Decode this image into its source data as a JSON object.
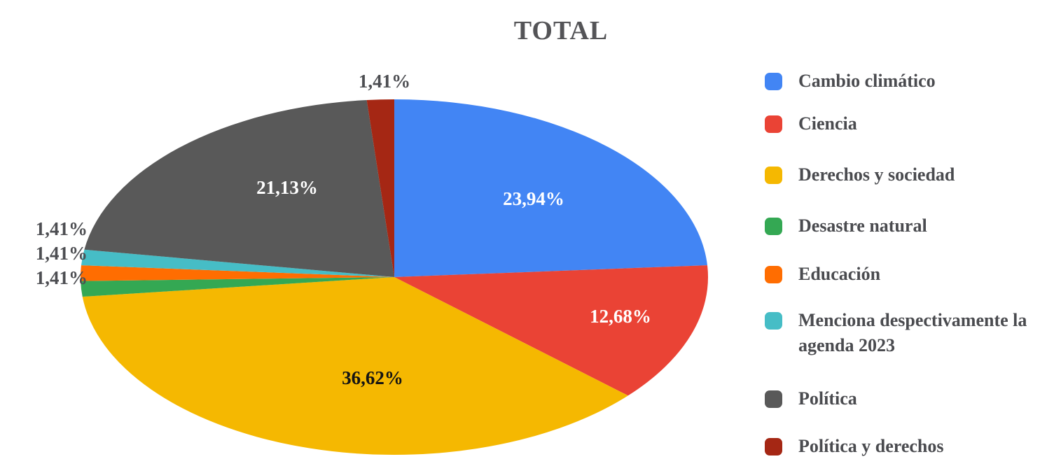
{
  "chart_data": {
    "type": "pie",
    "title": "TOTAL",
    "legend_position": "right",
    "start_angle_deg": 0,
    "direction": "clockwise",
    "number_format": "percent-comma-decimal",
    "slices": [
      {
        "label": "Cambio climático",
        "value": 23.94,
        "display": "23,94%",
        "color": "#4285F4",
        "label_placement": "inside",
        "label_color": "#ffffff"
      },
      {
        "label": "Ciencia",
        "value": 12.68,
        "display": "12,68%",
        "color": "#EA4335",
        "label_placement": "inside",
        "label_color": "#ffffff"
      },
      {
        "label": "Derechos y sociedad",
        "value": 36.62,
        "display": "36,62%",
        "color": "#F5B801",
        "label_placement": "inside",
        "label_color": "#141414"
      },
      {
        "label": "Desastre natural",
        "value": 1.41,
        "display": "1,41%",
        "color": "#34A853",
        "label_placement": "outside-left",
        "label_color": "#4d4e52"
      },
      {
        "label": "Educación",
        "value": 1.41,
        "display": "1,41%",
        "color": "#FF6D01",
        "label_placement": "outside-left",
        "label_color": "#4d4e52"
      },
      {
        "label": "Menciona despectivamente la agenda 2023",
        "value": 1.41,
        "display": "1,41%",
        "color": "#46BDC6",
        "label_placement": "outside-left",
        "label_color": "#4d4e52"
      },
      {
        "label": "Política",
        "value": 21.13,
        "display": "21,13%",
        "color": "#595959",
        "label_placement": "inside",
        "label_color": "#ffffff"
      },
      {
        "label": "Política y derechos",
        "value": 1.41,
        "display": "1,41%",
        "color": "#A52714",
        "label_placement": "outside-top",
        "label_color": "#4d4e52"
      }
    ]
  }
}
